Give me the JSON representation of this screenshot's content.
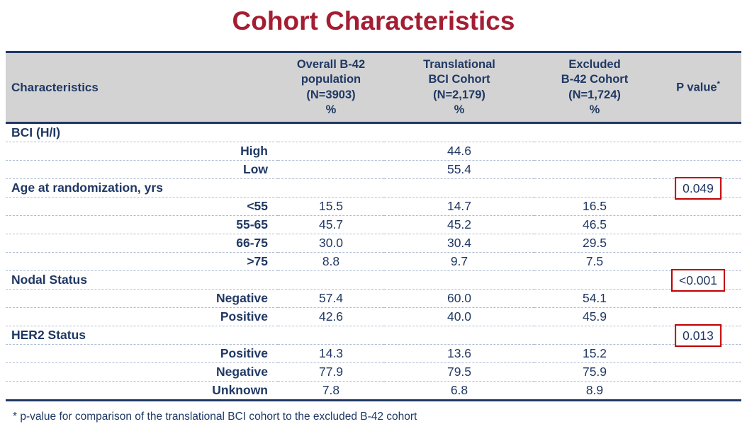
{
  "slide_title": "Cohort Characteristics",
  "table": {
    "headers": {
      "characteristics": "Characteristics",
      "overall": {
        "l1": "Overall B-42",
        "l2": "population",
        "l3": "(N=3903)",
        "l4": "%"
      },
      "translational": {
        "l1": "Translational",
        "l2": "BCI Cohort",
        "l3": "(N=2,179)",
        "l4": "%"
      },
      "excluded": {
        "l1": "Excluded",
        "l2": "B-42 Cohort",
        "l3": "(N=1,724)",
        "l4": "%"
      },
      "pvalue": {
        "label": "P value",
        "sup": "*"
      }
    },
    "rows": [
      {
        "label": "BCI (H/I)",
        "style": "category",
        "overall": "",
        "translational": "",
        "excluded": "",
        "p": ""
      },
      {
        "label": "High",
        "style": "sub",
        "overall": "",
        "translational": "44.6",
        "excluded": "",
        "p": ""
      },
      {
        "label": "Low",
        "style": "sub",
        "overall": "",
        "translational": "55.4",
        "excluded": "",
        "p": ""
      },
      {
        "label": "Age at randomization, yrs",
        "style": "category",
        "overall": "",
        "translational": "",
        "excluded": "",
        "p": "0.049",
        "p_boxed": true
      },
      {
        "label": "<55",
        "style": "sub",
        "overall": "15.5",
        "translational": "14.7",
        "excluded": "16.5",
        "p": ""
      },
      {
        "label": "55-65",
        "style": "sub",
        "overall": "45.7",
        "translational": "45.2",
        "excluded": "46.5",
        "p": ""
      },
      {
        "label": "66-75",
        "style": "sub",
        "overall": "30.0",
        "translational": "30.4",
        "excluded": "29.5",
        "p": ""
      },
      {
        "label": ">75",
        "style": "sub",
        "overall": "8.8",
        "translational": "9.7",
        "excluded": "7.5",
        "p": ""
      },
      {
        "label": "Nodal Status",
        "style": "category",
        "overall": "",
        "translational": "",
        "excluded": "",
        "p": "<0.001",
        "p_boxed": true
      },
      {
        "label": "Negative",
        "style": "sub",
        "overall": "57.4",
        "translational": "60.0",
        "excluded": "54.1",
        "p": ""
      },
      {
        "label": "Positive",
        "style": "sub",
        "overall": "42.6",
        "translational": "40.0",
        "excluded": "45.9",
        "p": ""
      },
      {
        "label": "HER2 Status",
        "style": "category",
        "overall": "",
        "translational": "",
        "excluded": "",
        "p": "0.013",
        "p_boxed": true
      },
      {
        "label": "Positive",
        "style": "sub",
        "overall": "14.3",
        "translational": "13.6",
        "excluded": "15.2",
        "p": ""
      },
      {
        "label": "Negative",
        "style": "sub",
        "overall": "77.9",
        "translational": "79.5",
        "excluded": "75.9",
        "p": ""
      },
      {
        "label": "Unknown",
        "style": "sub",
        "overall": "7.8",
        "translational": "6.8",
        "excluded": "8.9",
        "p": ""
      }
    ]
  },
  "footnote": "* p-value for comparison of the translational BCI cohort to the excluded B-42 cohort",
  "colors": {
    "title_red": "#A41E33",
    "table_navy": "#1F3864",
    "header_bg": "#D3D3D3",
    "p_box_border": "#C00000",
    "row_divider": "#AEBDD3"
  }
}
